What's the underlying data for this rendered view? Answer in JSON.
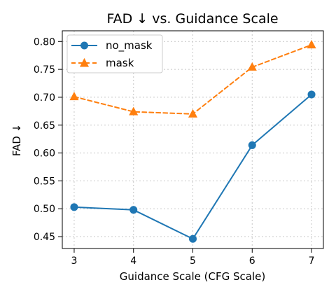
{
  "chart_data": {
    "type": "line",
    "title": "FAD ↓  vs. Guidance Scale",
    "xlabel": "Guidance Scale (CFG Scale)",
    "ylabel": "FAD ↓",
    "x": [
      3,
      4,
      5,
      6,
      7
    ],
    "xlim": [
      2.8,
      7.2
    ],
    "ylim": [
      0.4287,
      0.8192
    ],
    "xticks": [
      3,
      4,
      5,
      6,
      7
    ],
    "yticks": [
      0.45,
      0.5,
      0.55,
      0.6,
      0.65,
      0.7,
      0.75,
      0.8
    ],
    "ytick_labels": [
      "0.45",
      "0.50",
      "0.55",
      "0.60",
      "0.65",
      "0.70",
      "0.75",
      "0.80"
    ],
    "grid": true,
    "legend_position": "top-left",
    "series": [
      {
        "name": "no_mask",
        "values": [
          0.503,
          0.498,
          0.446,
          0.614,
          0.705
        ],
        "color": "#1f77b4",
        "marker": "circle",
        "linestyle": "solid"
      },
      {
        "name": "mask",
        "values": [
          0.701,
          0.674,
          0.67,
          0.754,
          0.794
        ],
        "color": "#ff7f0e",
        "marker": "triangle-up",
        "linestyle": "dashed"
      }
    ]
  }
}
